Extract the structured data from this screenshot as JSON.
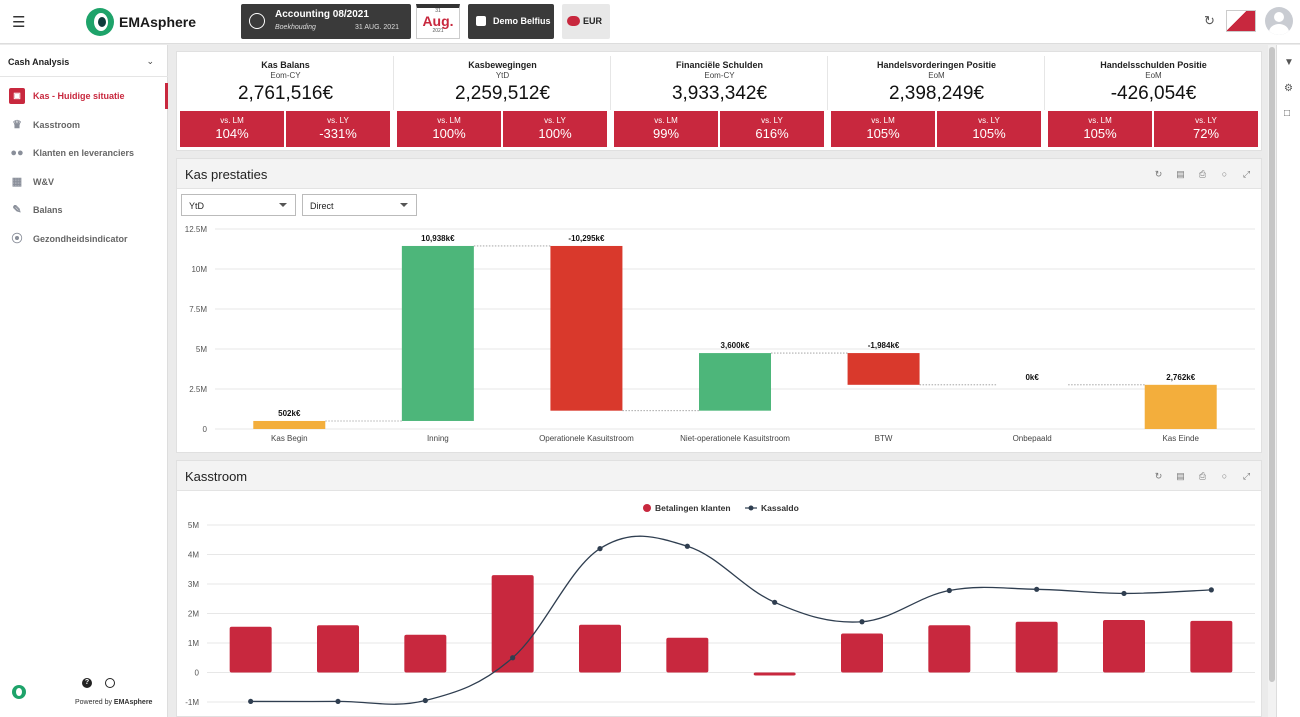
{
  "app": {
    "name": "EMAsphere"
  },
  "header": {
    "accounting_title": "Accounting 08/2021",
    "accounting_sub": "Boekhouding",
    "accounting_date": "31 AUG. 2021",
    "calendar": {
      "day": "31",
      "month": "Aug.",
      "year": "2021"
    },
    "company": "Demo Belfius",
    "currency": "EUR"
  },
  "sidebar": {
    "section": "Cash Analysis",
    "items": [
      {
        "label": "Kas - Huidige situatie",
        "icon": "cash-screen-icon",
        "active": true
      },
      {
        "label": "Kasstroom",
        "icon": "crown-icon"
      },
      {
        "label": "Klanten en leveranciers",
        "icon": "users-icon"
      },
      {
        "label": "W&V",
        "icon": "grid-icon"
      },
      {
        "label": "Balans",
        "icon": "edit-icon"
      },
      {
        "label": "Gezondheidsindicator",
        "icon": "compass-icon"
      }
    ],
    "powered_prefix": "Powered by",
    "powered_brand": "EMAsphere"
  },
  "kpis": [
    {
      "title": "Kas Balans",
      "sub": "Eom-CY",
      "value": "2,761,516€",
      "lm_label": "vs. LM",
      "lm": "104%",
      "ly_label": "vs. LY",
      "ly": "-331%"
    },
    {
      "title": "Kasbewegingen",
      "sub": "YtD",
      "value": "2,259,512€",
      "lm_label": "vs. LM",
      "lm": "100%",
      "ly_label": "vs. LY",
      "ly": "100%"
    },
    {
      "title": "Financiële Schulden",
      "sub": "Eom-CY",
      "value": "3,933,342€",
      "lm_label": "vs. LM",
      "lm": "99%",
      "ly_label": "vs. LY",
      "ly": "616%"
    },
    {
      "title": "Handelsvorderingen Positie",
      "sub": "EoM",
      "value": "2,398,249€",
      "lm_label": "vs. LM",
      "lm": "105%",
      "ly_label": "vs. LY",
      "ly": "105%"
    },
    {
      "title": "Handelsschulden Positie",
      "sub": "EoM",
      "value": "-426,054€",
      "lm_label": "vs. LM",
      "lm": "105%",
      "ly_label": "vs. LY",
      "ly": "72%"
    }
  ],
  "panel1": {
    "title": "Kas prestaties",
    "select_period": "YtD",
    "select_method": "Direct"
  },
  "panel2": {
    "title": "Kasstroom"
  },
  "colors": {
    "accent": "#c8283e",
    "green": "#4db67a",
    "red": "#d9392c",
    "orange": "#f3ae3c",
    "line": "#2f3e50"
  },
  "chart_data": [
    {
      "type": "bar",
      "subtype": "waterfall",
      "categories": [
        "Kas Begin",
        "Inning",
        "Operationele Kasuitstroom",
        "Niet-operationele Kasuitstroom",
        "BTW",
        "Onbepaald",
        "Kas Einde"
      ],
      "start": [
        0,
        502,
        11440,
        1145,
        4745,
        2762,
        0
      ],
      "end": [
        502,
        11440,
        1145,
        4745,
        2762,
        2762,
        2762
      ],
      "labels": [
        "502k€",
        "10,938k€",
        "-10,295k€",
        "3,600k€",
        "-1,984k€",
        "0k€",
        "2,762k€"
      ],
      "kinds": [
        "total",
        "increase",
        "decrease",
        "increase",
        "decrease",
        "neutral",
        "total"
      ],
      "yticks": [
        "0",
        "2.5M",
        "5M",
        "7.5M",
        "10M",
        "12.5M"
      ],
      "ylim": [
        0,
        12500
      ]
    },
    {
      "type": "bar",
      "subtype": "bar+line",
      "series": [
        {
          "name": "Betalingen klanten",
          "type": "bar",
          "values": [
            1.55,
            1.6,
            1.28,
            3.3,
            1.62,
            1.18,
            -0.1,
            1.32,
            1.6,
            1.72,
            1.78,
            1.75
          ]
        },
        {
          "name": "Kassaldo",
          "type": "line",
          "values": [
            -0.98,
            -0.98,
            -0.95,
            0.5,
            4.2,
            4.28,
            2.38,
            1.72,
            2.78,
            2.82,
            2.68,
            2.8
          ]
        }
      ],
      "yticks": [
        "-1M",
        "0",
        "1M",
        "2M",
        "3M",
        "4M",
        "5M"
      ],
      "ylim": [
        -1,
        5
      ]
    }
  ]
}
